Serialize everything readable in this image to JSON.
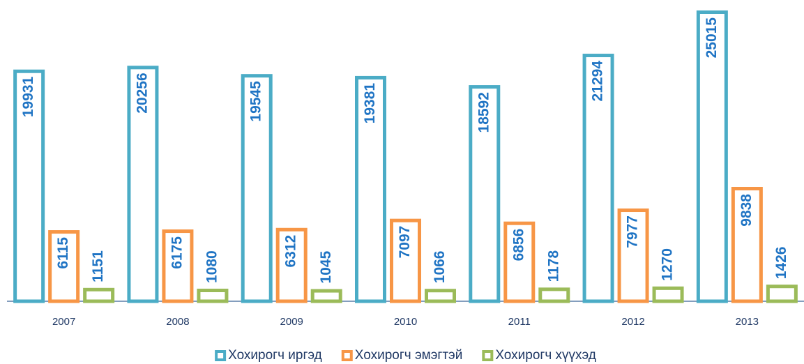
{
  "chart_data": {
    "type": "bar",
    "categories": [
      "2007",
      "2008",
      "2009",
      "2010",
      "2011",
      "2012",
      "2013"
    ],
    "series": [
      {
        "name": "Хохирогч иргэд",
        "color": "#4bacc6",
        "values": [
          19931,
          20256,
          19545,
          19381,
          18592,
          21294,
          25015
        ]
      },
      {
        "name": "Хохирогч эмэгтэй",
        "color": "#f79646",
        "values": [
          6115,
          6175,
          6312,
          7097,
          6856,
          7977,
          9838
        ]
      },
      {
        "name": "Хохирогч хүүхэд",
        "color": "#9bbb59",
        "values": [
          1151,
          1080,
          1045,
          1066,
          1178,
          1270,
          1426
        ]
      }
    ]
  }
}
